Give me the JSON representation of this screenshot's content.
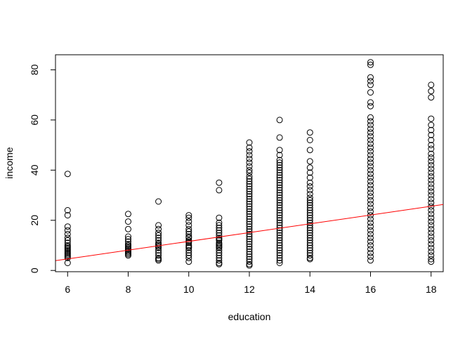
{
  "chart_data": {
    "type": "scatter",
    "title": "",
    "xlabel": "education",
    "ylabel": "income",
    "xlim": [
      5.6,
      18.4
    ],
    "ylim": [
      -0.5,
      86
    ],
    "x_ticks": [
      6,
      8,
      10,
      12,
      14,
      16,
      18
    ],
    "y_ticks": [
      0,
      20,
      40,
      60,
      80
    ],
    "x_tick_labels": [
      "6",
      "8",
      "10",
      "12",
      "14",
      "16",
      "18"
    ],
    "y_tick_labels": [
      "0",
      "20",
      "40",
      "60",
      "80"
    ],
    "grid": false,
    "legend": "none",
    "point_color": "#000000",
    "regression_line": {
      "color": "#ff0000",
      "intercept": -5.9,
      "slope": 1.75
    },
    "points": [
      {
        "x": 6,
        "y": [
          38.5,
          24,
          22,
          17.5,
          16,
          14.5,
          13,
          12,
          11,
          10,
          9.5,
          9,
          8.5,
          8,
          7.5,
          7,
          6.5,
          6,
          5.5,
          5,
          3
        ]
      },
      {
        "x": 8,
        "y": [
          22.5,
          19.5,
          16.5,
          13.5,
          12.5,
          11.5,
          10.5,
          10,
          9.5,
          9,
          8.5,
          8,
          7.5,
          7,
          6.5,
          6
        ]
      },
      {
        "x": 9,
        "y": [
          27.5,
          18,
          16.5,
          15,
          14,
          13,
          12,
          11,
          10.5,
          10,
          9.5,
          9,
          8,
          7,
          6,
          5,
          4.5,
          4
        ]
      },
      {
        "x": 10,
        "y": [
          22,
          21,
          19.5,
          18,
          16.5,
          15.5,
          14.5,
          13.5,
          13,
          12,
          11.5,
          11,
          10,
          9.5,
          9,
          8,
          7,
          6,
          5,
          3.5
        ]
      },
      {
        "x": 11,
        "y": [
          35,
          32,
          21,
          19,
          18,
          17,
          16,
          15,
          14,
          13,
          12.5,
          12,
          11,
          10.5,
          10,
          9.5,
          9,
          8,
          7,
          6,
          5,
          4,
          3,
          2.5
        ]
      },
      {
        "x": 12,
        "y": [
          51,
          49,
          47.5,
          46,
          44.5,
          43,
          41.5,
          40,
          39,
          37.5,
          36.5,
          35.5,
          34.5,
          33.5,
          32.5,
          31.5,
          30.5,
          29.5,
          28.5,
          27.5,
          26.5,
          25.5,
          24.5,
          23.5,
          22.5,
          21.5,
          20.5,
          19.5,
          18.5,
          17.5,
          16.5,
          15.5,
          14.5,
          13.5,
          12.5,
          11.5,
          10.5,
          9.5,
          8.5,
          7.5,
          6.5,
          5.5,
          4.5,
          3.5,
          2.5,
          2
        ]
      },
      {
        "x": 13,
        "y": [
          60,
          53,
          48,
          46,
          44,
          43,
          42,
          41,
          40,
          39,
          38,
          37,
          36,
          35,
          34,
          33,
          32,
          31,
          30,
          29,
          28,
          27,
          26,
          25,
          24,
          23,
          22,
          21,
          20,
          19,
          18,
          17,
          16,
          15,
          14,
          13,
          12,
          11,
          10,
          9,
          8,
          7,
          6,
          5,
          4,
          3
        ]
      },
      {
        "x": 14,
        "y": [
          55,
          52,
          48,
          43.5,
          41,
          39,
          37,
          35,
          33.5,
          32,
          30.5,
          29,
          28,
          27,
          26,
          25,
          24,
          23,
          22,
          21,
          20,
          19,
          18,
          17,
          16,
          15,
          14,
          13,
          12,
          11,
          10,
          9,
          8,
          7,
          6,
          5,
          4.5
        ]
      },
      {
        "x": 16,
        "y": [
          83,
          82,
          77,
          75.5,
          74,
          71,
          67,
          65.5,
          61,
          59.5,
          58,
          56.5,
          55,
          53.5,
          52,
          50.5,
          49,
          47.5,
          46,
          44.5,
          43,
          41.5,
          40,
          38.5,
          37,
          35.5,
          34,
          32.5,
          31,
          29.5,
          28,
          26.5,
          25,
          23.5,
          22,
          20.5,
          19,
          17.5,
          16,
          14.5,
          13,
          11.5,
          10,
          8.5,
          7,
          5.5,
          4
        ]
      },
      {
        "x": 18,
        "y": [
          74,
          71.5,
          69,
          60.5,
          58,
          56,
          54,
          52,
          50,
          48.5,
          46.5,
          45,
          43.5,
          42,
          40.5,
          39,
          37.5,
          36,
          34.5,
          33,
          31.5,
          30,
          28.5,
          27,
          25.5,
          24,
          22.5,
          21,
          19.5,
          18,
          16.5,
          15,
          13.5,
          12,
          10.5,
          9,
          7.5,
          6,
          4.5,
          3.5
        ]
      }
    ]
  }
}
